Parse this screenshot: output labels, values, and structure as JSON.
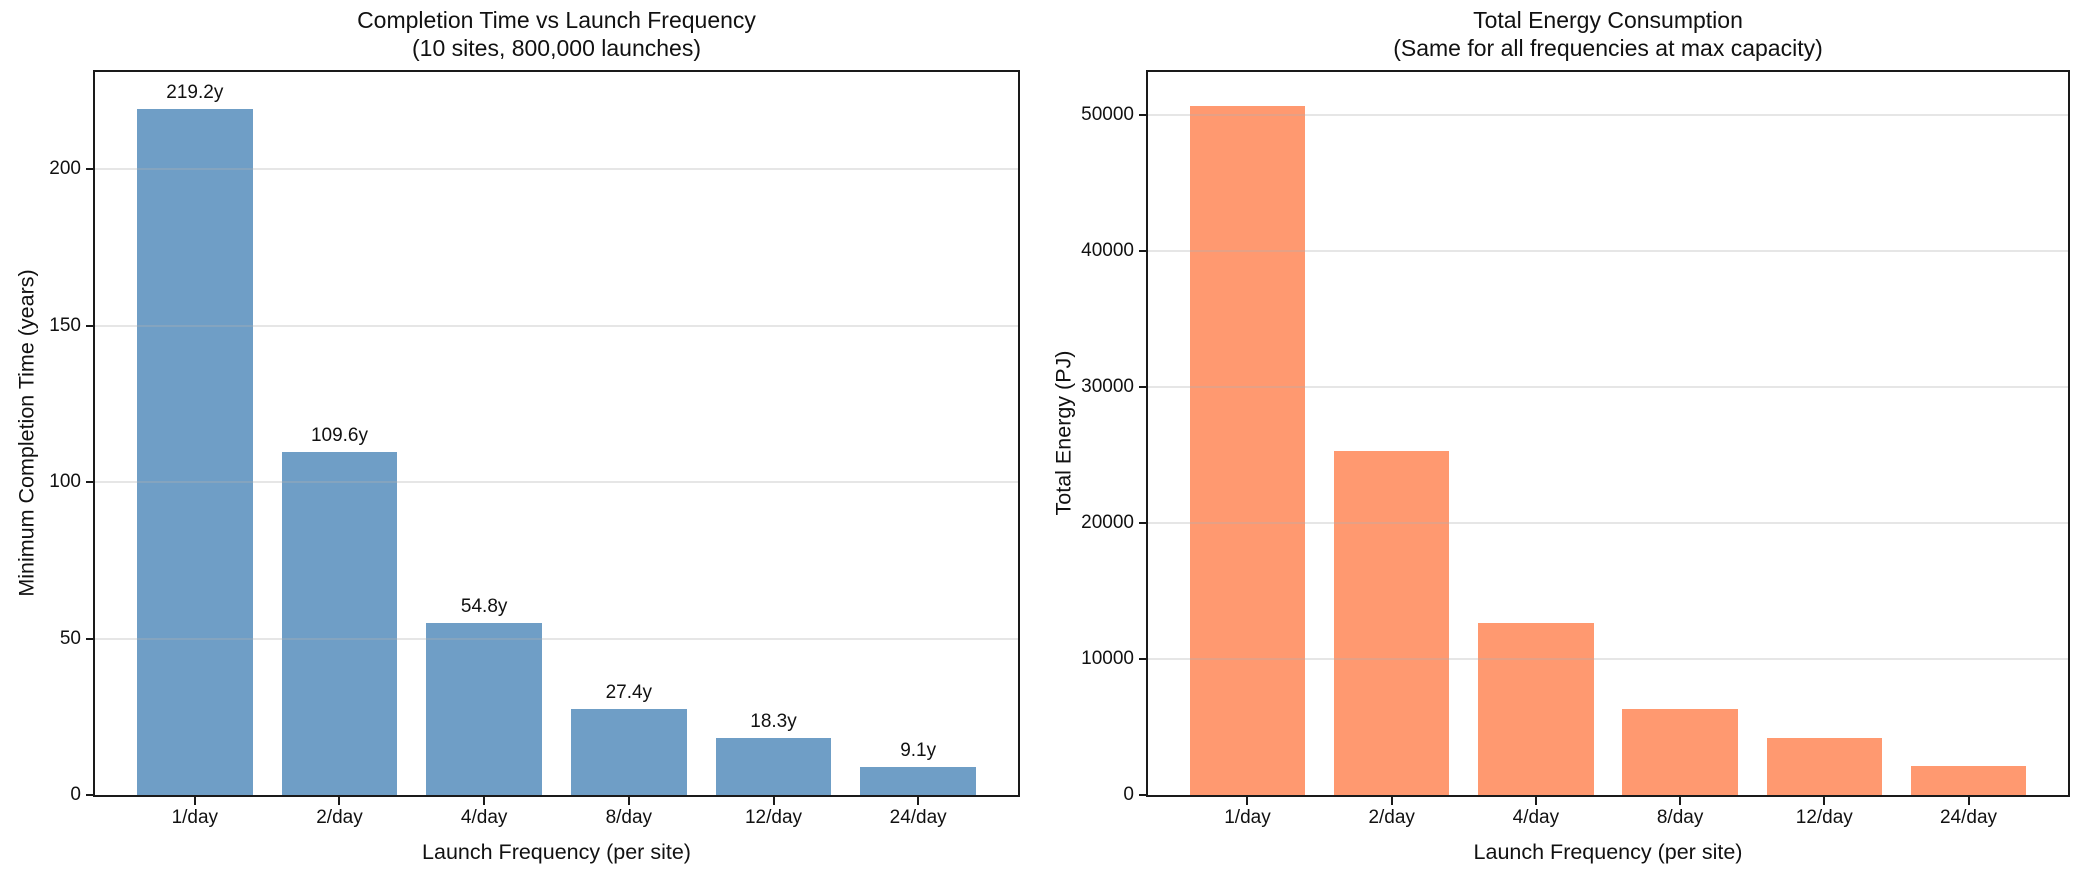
{
  "figure": {
    "background": "#ffffff",
    "text_color": "#111111",
    "grid_color": "#b0b0b0"
  },
  "chart_data": [
    {
      "type": "bar",
      "title": "Completion Time vs Launch Frequency",
      "subtitle": "(10 sites, 800,000 launches)",
      "xlabel": "Launch Frequency (per site)",
      "ylabel": "Minimum Completion Time (years)",
      "categories": [
        "1/day",
        "2/day",
        "4/day",
        "8/day",
        "12/day",
        "24/day"
      ],
      "values": [
        219.2,
        109.6,
        54.8,
        27.4,
        18.3,
        9.1
      ],
      "bar_labels": [
        "219.2y",
        "109.6y",
        "54.8y",
        "27.4y",
        "18.3y",
        "9.1y"
      ],
      "bar_color": "#6F9EC6",
      "yticks": [
        0,
        50,
        100,
        150,
        200
      ],
      "ylim": [
        0,
        231
      ],
      "grid": "horizontal",
      "legend": "none"
    },
    {
      "type": "bar",
      "title": "Total Energy Consumption",
      "subtitle": "(Same for all frequencies at max capacity)",
      "xlabel": "Launch Frequency (per site)",
      "ylabel": "Total Energy (PJ)",
      "categories": [
        "1/day",
        "2/day",
        "4/day",
        "8/day",
        "12/day",
        "24/day"
      ],
      "values": [
        50600,
        25300,
        12650,
        6325,
        4217,
        2108
      ],
      "bar_labels": [],
      "bar_color": "#FF9970",
      "yticks": [
        0,
        10000,
        20000,
        30000,
        40000,
        50000
      ],
      "ylim": [
        0,
        53130
      ],
      "grid": "horizontal",
      "legend": "none"
    }
  ]
}
